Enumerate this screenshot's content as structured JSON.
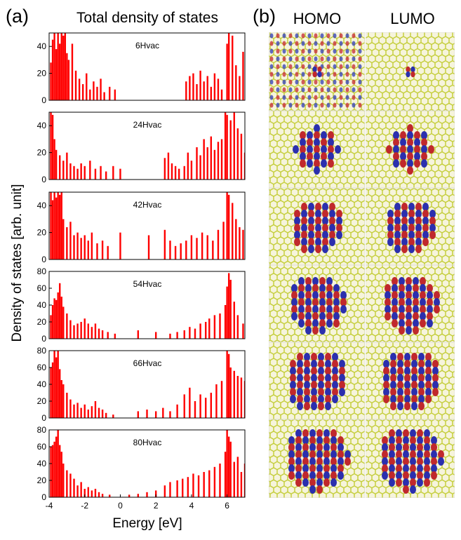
{
  "figure": {
    "panel_a_label": "(a)",
    "panel_a_title": "Total density of states",
    "panel_b_label": "(b)",
    "columns": [
      "HOMO",
      "LUMO"
    ],
    "ylabel": "Density of states [arb. unit]"
  },
  "chart_data": [
    {
      "type": "bar",
      "annotation": "6Hvac",
      "color": "#ff0000",
      "xlim": [
        -4,
        7
      ],
      "ylim": [
        0,
        50
      ],
      "yticks": [
        0,
        20,
        40
      ],
      "x": [
        -3.9,
        -3.8,
        -3.7,
        -3.6,
        -3.5,
        -3.4,
        -3.3,
        -3.2,
        -3.1,
        -3.0,
        -2.9,
        -2.7,
        -2.5,
        -2.3,
        -2.1,
        -1.9,
        -1.7,
        -1.5,
        -1.3,
        -1.1,
        -0.9,
        -0.6,
        -0.3,
        3.7,
        3.9,
        4.1,
        4.3,
        4.5,
        4.7,
        4.9,
        5.1,
        5.3,
        5.5,
        5.7,
        6.0,
        6.1,
        6.3,
        6.5,
        6.7,
        6.9
      ],
      "values": [
        28,
        45,
        50,
        38,
        50,
        42,
        50,
        48,
        50,
        35,
        30,
        42,
        22,
        16,
        12,
        20,
        8,
        14,
        10,
        16,
        6,
        10,
        8,
        14,
        18,
        20,
        12,
        22,
        14,
        18,
        10,
        20,
        16,
        8,
        42,
        50,
        48,
        26,
        18,
        36
      ]
    },
    {
      "type": "bar",
      "annotation": "24Hvac",
      "color": "#ff0000",
      "xlim": [
        -4,
        7
      ],
      "ylim": [
        0,
        50
      ],
      "yticks": [
        0,
        20,
        40
      ],
      "x": [
        -3.9,
        -3.8,
        -3.7,
        -3.6,
        -3.4,
        -3.2,
        -3.0,
        -2.8,
        -2.6,
        -2.4,
        -2.2,
        -2.0,
        -1.7,
        -1.4,
        -1.1,
        -0.8,
        -0.4,
        0,
        2.5,
        2.7,
        2.9,
        3.1,
        3.3,
        3.6,
        3.8,
        4.0,
        4.3,
        4.5,
        4.7,
        4.9,
        5.1,
        5.3,
        5.5,
        5.7,
        5.9,
        6.0,
        6.2,
        6.4,
        6.6,
        6.8,
        7.0
      ],
      "values": [
        50,
        48,
        30,
        22,
        18,
        14,
        20,
        12,
        10,
        8,
        12,
        10,
        14,
        8,
        10,
        6,
        10,
        8,
        16,
        20,
        12,
        10,
        8,
        10,
        20,
        14,
        24,
        18,
        30,
        24,
        32,
        22,
        28,
        30,
        50,
        48,
        44,
        50,
        38,
        34,
        20
      ]
    },
    {
      "type": "bar",
      "annotation": "42Hvac",
      "color": "#ff0000",
      "xlim": [
        -4,
        7
      ],
      "ylim": [
        0,
        50
      ],
      "yticks": [
        0,
        20,
        40
      ],
      "x": [
        -3.9,
        -3.8,
        -3.7,
        -3.6,
        -3.5,
        -3.4,
        -3.3,
        -3.2,
        -3.0,
        -2.8,
        -2.6,
        -2.4,
        -2.2,
        -2.0,
        -1.8,
        -1.6,
        -1.3,
        -1.0,
        -0.7,
        0,
        1.6,
        2.5,
        2.8,
        3.1,
        3.4,
        3.7,
        4.0,
        4.3,
        4.6,
        4.9,
        5.2,
        5.5,
        5.8,
        6.0,
        6.1,
        6.3,
        6.5,
        6.7,
        6.9
      ],
      "values": [
        50,
        44,
        50,
        46,
        50,
        48,
        50,
        30,
        24,
        28,
        18,
        20,
        16,
        18,
        14,
        20,
        12,
        14,
        10,
        20,
        18,
        22,
        14,
        10,
        12,
        14,
        18,
        16,
        20,
        18,
        14,
        22,
        28,
        50,
        48,
        42,
        30,
        24,
        22
      ]
    },
    {
      "type": "bar",
      "annotation": "54Hvac",
      "color": "#ff0000",
      "xlim": [
        -4,
        7
      ],
      "ylim": [
        0,
        80
      ],
      "yticks": [
        0,
        20,
        40,
        60,
        80
      ],
      "x": [
        -3.9,
        -3.8,
        -3.7,
        -3.6,
        -3.5,
        -3.4,
        -3.3,
        -3.2,
        -3.0,
        -2.8,
        -2.6,
        -2.4,
        -2.2,
        -2.0,
        -1.8,
        -1.6,
        -1.4,
        -1.2,
        -1.0,
        -0.7,
        -0.3,
        1.0,
        2.0,
        2.8,
        3.2,
        3.6,
        3.9,
        4.2,
        4.5,
        4.8,
        5.0,
        5.3,
        5.6,
        5.9,
        6.0,
        6.1,
        6.2,
        6.4,
        6.6,
        6.9
      ],
      "values": [
        28,
        40,
        48,
        46,
        55,
        66,
        50,
        38,
        30,
        22,
        16,
        18,
        20,
        24,
        18,
        14,
        18,
        12,
        10,
        8,
        6,
        10,
        8,
        6,
        8,
        10,
        14,
        12,
        18,
        20,
        24,
        28,
        30,
        40,
        62,
        78,
        70,
        44,
        28,
        18
      ]
    },
    {
      "type": "bar",
      "annotation": "66Hvac",
      "color": "#ff0000",
      "xlim": [
        -4,
        7
      ],
      "ylim": [
        0,
        80
      ],
      "yticks": [
        0,
        20,
        40,
        60,
        80
      ],
      "x": [
        -3.9,
        -3.8,
        -3.7,
        -3.6,
        -3.5,
        -3.4,
        -3.3,
        -3.2,
        -3.0,
        -2.8,
        -2.6,
        -2.4,
        -2.2,
        -2.0,
        -1.8,
        -1.6,
        -1.4,
        -1.2,
        -1.0,
        -0.8,
        -0.4,
        1.0,
        1.5,
        2.0,
        2.4,
        2.8,
        3.2,
        3.6,
        3.9,
        4.2,
        4.5,
        4.8,
        5.1,
        5.4,
        5.7,
        6.0,
        6.1,
        6.2,
        6.4,
        6.6,
        6.8,
        7.0
      ],
      "values": [
        60,
        66,
        80,
        72,
        80,
        58,
        45,
        40,
        30,
        22,
        16,
        18,
        12,
        16,
        10,
        14,
        20,
        12,
        10,
        6,
        4,
        8,
        10,
        8,
        12,
        8,
        16,
        28,
        36,
        20,
        28,
        24,
        30,
        40,
        44,
        80,
        76,
        60,
        56,
        50,
        48,
        44
      ]
    },
    {
      "type": "bar",
      "annotation": "80Hvac",
      "color": "#ff0000",
      "xlim": [
        -4,
        7
      ],
      "ylim": [
        0,
        80
      ],
      "yticks": [
        0,
        20,
        40,
        60,
        80
      ],
      "xticks": [
        -4,
        -2,
        0,
        2,
        4,
        6
      ],
      "xlabel": "Energy [eV]",
      "x": [
        -3.9,
        -3.8,
        -3.7,
        -3.6,
        -3.5,
        -3.4,
        -3.3,
        -3.2,
        -3.0,
        -2.8,
        -2.6,
        -2.4,
        -2.2,
        -2.0,
        -1.8,
        -1.6,
        -1.4,
        -1.2,
        -1.0,
        -0.6,
        0.5,
        1.0,
        1.5,
        2.0,
        2.5,
        2.8,
        3.2,
        3.5,
        3.8,
        4.1,
        4.4,
        4.7,
        5.0,
        5.3,
        5.6,
        5.9,
        6.0,
        6.1,
        6.2,
        6.4,
        6.6,
        6.8,
        7.0
      ],
      "values": [
        60,
        62,
        66,
        72,
        80,
        62,
        54,
        40,
        32,
        28,
        22,
        14,
        18,
        10,
        12,
        8,
        10,
        6,
        4,
        3,
        3,
        4,
        6,
        8,
        14,
        18,
        20,
        22,
        24,
        28,
        26,
        30,
        32,
        36,
        40,
        54,
        80,
        72,
        66,
        42,
        48,
        30,
        40
      ]
    }
  ]
}
